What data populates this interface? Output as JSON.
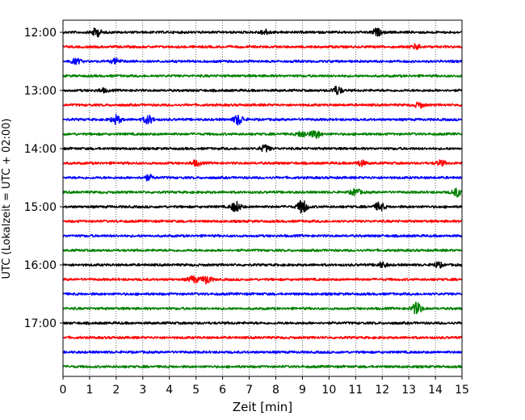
{
  "chart_data": {
    "type": "line",
    "title": "",
    "xlabel": "Zeit  [min]",
    "ylabel": "UTC (Lokalzeit = UTC + 02:00)",
    "xlim": [
      0,
      15
    ],
    "x_ticks": [
      "0",
      "1",
      "2",
      "3",
      "4",
      "5",
      "6",
      "7",
      "8",
      "9",
      "10",
      "11",
      "12",
      "13",
      "14",
      "15"
    ],
    "y_ticks": [
      "12:00",
      "13:00",
      "14:00",
      "15:00",
      "16:00",
      "17:00"
    ],
    "y_tick_hours": [
      12,
      13,
      14,
      15,
      16,
      17
    ],
    "grid": "vertical dotted at each minute",
    "trace_colors": [
      "#000000",
      "#ff0000",
      "#0000ff",
      "#008000"
    ],
    "series": [
      {
        "start": "12:00",
        "events": [
          {
            "t": 1.25,
            "a": 5
          },
          {
            "t": 7.6,
            "a": 3
          },
          {
            "t": 11.8,
            "a": 4
          }
        ]
      },
      {
        "start": "12:15",
        "events": [
          {
            "t": 13.3,
            "a": 3
          }
        ]
      },
      {
        "start": "12:30",
        "events": [
          {
            "t": 0.5,
            "a": 3
          },
          {
            "t": 2.0,
            "a": 3
          }
        ]
      },
      {
        "start": "12:45",
        "events": []
      },
      {
        "start": "13:00",
        "events": [
          {
            "t": 10.3,
            "a": 5
          },
          {
            "t": 1.5,
            "a": 2
          }
        ]
      },
      {
        "start": "13:15",
        "events": [
          {
            "t": 13.4,
            "a": 3
          }
        ]
      },
      {
        "start": "13:30",
        "events": [
          {
            "t": 2.0,
            "a": 5
          },
          {
            "t": 3.2,
            "a": 5
          },
          {
            "t": 6.6,
            "a": 6
          }
        ]
      },
      {
        "start": "13:45",
        "events": [
          {
            "t": 9.0,
            "a": 4
          },
          {
            "t": 9.5,
            "a": 5
          }
        ]
      },
      {
        "start": "14:00",
        "events": [
          {
            "t": 7.6,
            "a": 4
          }
        ]
      },
      {
        "start": "14:15",
        "events": [
          {
            "t": 5.0,
            "a": 3
          },
          {
            "t": 11.2,
            "a": 3
          },
          {
            "t": 14.2,
            "a": 3
          }
        ]
      },
      {
        "start": "14:30",
        "events": [
          {
            "t": 3.2,
            "a": 3
          }
        ]
      },
      {
        "start": "14:45",
        "events": [
          {
            "t": 11.0,
            "a": 4
          },
          {
            "t": 14.8,
            "a": 5
          }
        ]
      },
      {
        "start": "15:00",
        "events": [
          {
            "t": 6.5,
            "a": 6
          },
          {
            "t": 9.0,
            "a": 8
          },
          {
            "t": 11.9,
            "a": 5
          }
        ]
      },
      {
        "start": "15:15",
        "events": []
      },
      {
        "start": "15:30",
        "events": []
      },
      {
        "start": "15:45",
        "events": []
      },
      {
        "start": "16:00",
        "events": [
          {
            "t": 12.0,
            "a": 3
          },
          {
            "t": 14.1,
            "a": 3
          }
        ]
      },
      {
        "start": "16:15",
        "events": [
          {
            "t": 4.9,
            "a": 4
          },
          {
            "t": 5.4,
            "a": 5
          }
        ]
      },
      {
        "start": "16:30",
        "events": []
      },
      {
        "start": "16:45",
        "events": [
          {
            "t": 13.3,
            "a": 7
          }
        ]
      },
      {
        "start": "17:00",
        "events": []
      },
      {
        "start": "17:15",
        "events": []
      },
      {
        "start": "17:30",
        "events": []
      },
      {
        "start": "17:45",
        "events": []
      }
    ]
  }
}
